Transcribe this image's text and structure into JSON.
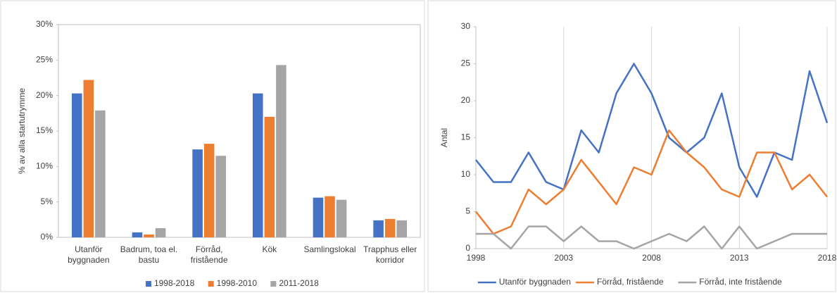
{
  "chart_data": [
    {
      "type": "bar",
      "y_label": "% av alla startutrymme",
      "categories": [
        "Utanför byggnaden",
        "Badrum, toa el. bastu",
        "Förråd, fristående",
        "Kök",
        "Samlingslokal",
        "Trapphus eller korridor"
      ],
      "series": [
        {
          "name": "1998-2018",
          "color": "#4472c4",
          "values": [
            20.3,
            0.7,
            12.4,
            20.3,
            5.6,
            2.4
          ]
        },
        {
          "name": "1998-2010",
          "color": "#ed7d31",
          "values": [
            22.2,
            0.4,
            13.2,
            17.0,
            5.8,
            2.6
          ]
        },
        {
          "name": "2011-2018",
          "color": "#a5a5a5",
          "values": [
            17.9,
            1.3,
            11.5,
            24.3,
            5.3,
            2.4
          ]
        }
      ],
      "ylim": [
        0,
        30
      ],
      "yticks": [
        {
          "value": 0,
          "label": "0%"
        },
        {
          "value": 5,
          "label": "5%"
        },
        {
          "value": 10,
          "label": "10%"
        },
        {
          "value": 15,
          "label": "15%"
        },
        {
          "value": 20,
          "label": "20%"
        },
        {
          "value": 25,
          "label": "25%"
        },
        {
          "value": 30,
          "label": "30%"
        }
      ],
      "legend": "bottom"
    },
    {
      "type": "line",
      "y_label": "Antal",
      "x": [
        1998,
        1999,
        2000,
        2001,
        2002,
        2003,
        2004,
        2005,
        2006,
        2007,
        2008,
        2009,
        2010,
        2011,
        2012,
        2013,
        2014,
        2015,
        2016,
        2017,
        2018
      ],
      "series": [
        {
          "name": "Utanför byggnaden",
          "color": "#4472c4",
          "values": [
            12,
            9,
            9,
            13,
            9,
            8,
            16,
            13,
            21,
            25,
            21,
            15,
            13,
            15,
            21,
            11,
            7,
            13,
            12,
            24,
            17
          ]
        },
        {
          "name": "Förråd, fristående",
          "color": "#ed7d31",
          "values": [
            5,
            2,
            3,
            8,
            6,
            8,
            12,
            9,
            6,
            11,
            10,
            16,
            13,
            11,
            8,
            7,
            13,
            13,
            8,
            10,
            7
          ]
        },
        {
          "name": "Förråd, inte fristående",
          "color": "#a5a5a5",
          "values": [
            2,
            2,
            0,
            3,
            3,
            1,
            3,
            1,
            1,
            0,
            1,
            2,
            1,
            3,
            0,
            3,
            0,
            1,
            2,
            2,
            2
          ]
        }
      ],
      "xlim": [
        1998,
        2018
      ],
      "xticks": [
        1998,
        2003,
        2008,
        2013,
        2018
      ],
      "ylim": [
        0,
        30
      ],
      "yticks": [
        0,
        5,
        10,
        15,
        20,
        25,
        30
      ],
      "grid": "x",
      "legend": "bottom"
    }
  ]
}
